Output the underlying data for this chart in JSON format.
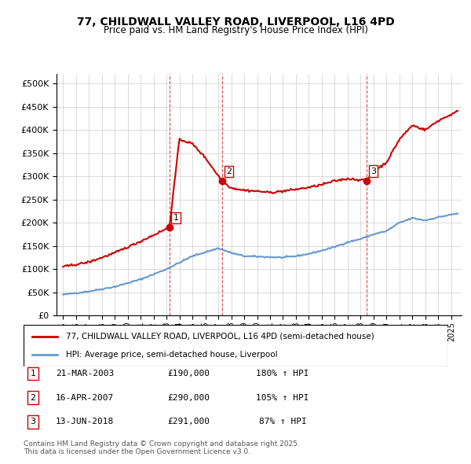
{
  "title_line1": "77, CHILDWALL VALLEY ROAD, LIVERPOOL, L16 4PD",
  "title_line2": "Price paid vs. HM Land Registry's House Price Index (HPI)",
  "background_color": "#ffffff",
  "grid_color": "#cccccc",
  "ylabel": "",
  "ylim": [
    0,
    520000
  ],
  "yticks": [
    0,
    50000,
    100000,
    150000,
    200000,
    250000,
    300000,
    350000,
    400000,
    450000,
    500000
  ],
  "ytick_labels": [
    "£0",
    "£50K",
    "£100K",
    "£150K",
    "£200K",
    "£250K",
    "£300K",
    "£350K",
    "£400K",
    "£450K",
    "£500K"
  ],
  "sale_dates": [
    2003.22,
    2007.29,
    2018.45
  ],
  "sale_prices": [
    190000,
    290000,
    291000
  ],
  "sale_labels": [
    "1",
    "2",
    "3"
  ],
  "hpi_line_color": "#6699cc",
  "price_line_color": "#cc0000",
  "vline_color": "#cc0000",
  "legend_line1": "77, CHILDWALL VALLEY ROAD, LIVERPOOL, L16 4PD (semi-detached house)",
  "legend_line2": "HPI: Average price, semi-detached house, Liverpool",
  "table_rows": [
    [
      "1",
      "21-MAR-2003",
      "£190,000",
      "180% ↑ HPI"
    ],
    [
      "2",
      "16-APR-2007",
      "£290,000",
      "105% ↑ HPI"
    ],
    [
      "3",
      "13-JUN-2018",
      "£291,000",
      "87% ↑ HPI"
    ]
  ],
  "footnote": "Contains HM Land Registry data © Crown copyright and database right 2025.\nThis data is licensed under the Open Government Licence v3.0.",
  "xlim_start": 1994.5,
  "xlim_end": 2025.8
}
